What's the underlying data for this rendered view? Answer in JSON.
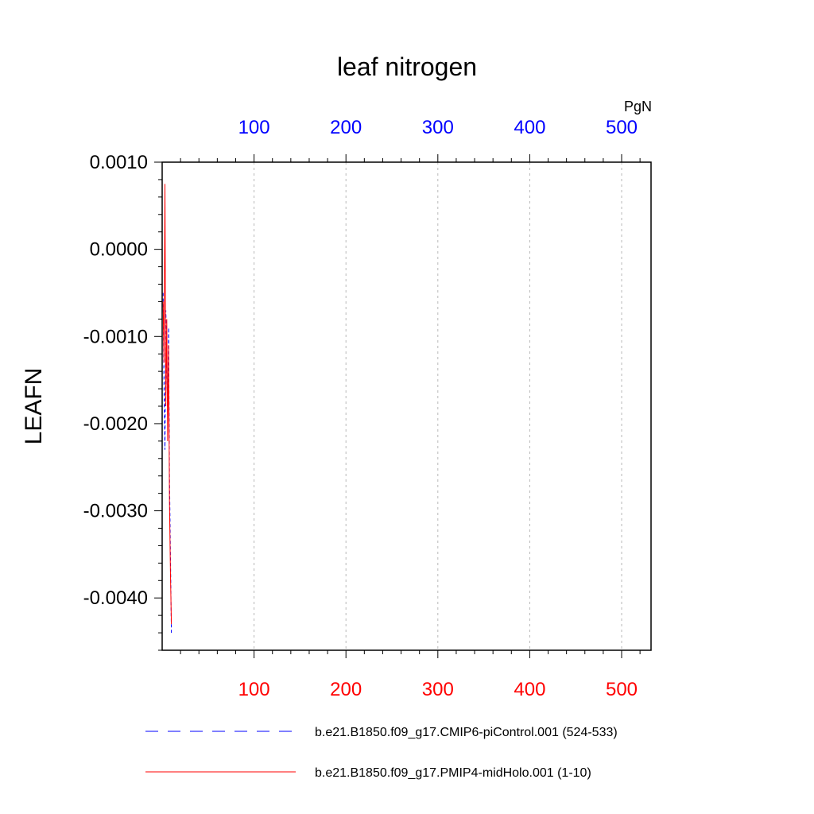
{
  "chart_data": {
    "type": "line",
    "title": "leaf nitrogen",
    "ylabel": "LEAFN",
    "top_axis_units": "PgN",
    "ylim": [
      -0.0046,
      0.001
    ],
    "xlim": [
      0,
      532
    ],
    "y_ticks": [
      0.001,
      0.0,
      -0.001,
      -0.002,
      -0.003,
      -0.004
    ],
    "y_tick_labels": [
      "0.0010",
      "0.0000",
      "-0.0010",
      "-0.0020",
      "-0.0030",
      "-0.0040"
    ],
    "x_bottom_ticks": [
      100,
      200,
      300,
      400,
      500
    ],
    "x_bottom_tick_labels": [
      "100",
      "200",
      "300",
      "400",
      "500"
    ],
    "x_bottom_color": "#ff0000",
    "x_top_ticks": [
      100,
      200,
      300,
      400,
      500
    ],
    "x_top_tick_labels": [
      "100",
      "200",
      "300",
      "400",
      "500"
    ],
    "x_top_color": "#0000ff",
    "grid": "vertical dashed at major x ticks",
    "legend_placement": "below plot",
    "series": [
      {
        "name": "b.e21.B1850.f09_g17.CMIP6-piControl.001 (524-533)",
        "color": "#0000ff",
        "dash": "dashed",
        "x": [
          1,
          2,
          3,
          4,
          5,
          6,
          7,
          8,
          9,
          10
        ],
        "y": [
          -0.0005,
          -0.0016,
          -0.0023,
          -0.0007,
          -0.0012,
          -0.0019,
          -0.0009,
          -0.0026,
          -0.0035,
          -0.0044
        ]
      },
      {
        "name": "b.e21.B1850.f09_g17.PMIP4-midHolo.001 (1-10)",
        "color": "#ff0000",
        "dash": "solid",
        "x": [
          1,
          2,
          3,
          4,
          5,
          6,
          7,
          8,
          9,
          10
        ],
        "y": [
          -0.0006,
          -0.0013,
          0.00075,
          -0.0018,
          -0.0008,
          -0.0022,
          -0.0011,
          -0.0029,
          -0.0037,
          -0.0043
        ]
      }
    ]
  }
}
